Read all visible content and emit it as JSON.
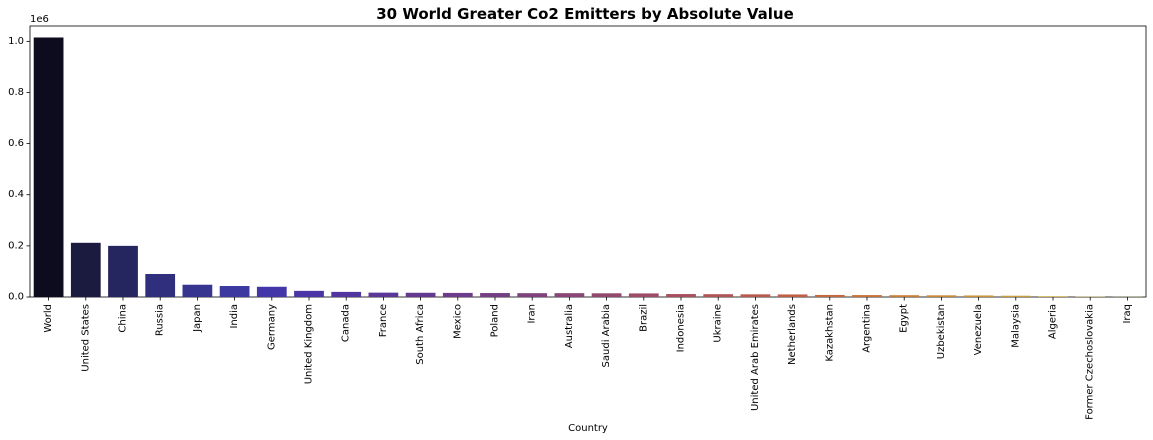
{
  "chart_data": {
    "type": "bar",
    "title": "30 World Greater Co2 Emitters by Absolute Value",
    "xlabel": "Country",
    "ylabel": "",
    "y_offset_label": "1e6",
    "ylim": [
      0,
      1060000
    ],
    "yticks": [
      0,
      200000,
      400000,
      600000,
      800000,
      1000000
    ],
    "ytick_labels": [
      "0.0",
      "0.2",
      "0.4",
      "0.6",
      "0.8",
      "1.0"
    ],
    "grid": false,
    "categories": [
      "World",
      "United States",
      "China",
      "Russia",
      "Japan",
      "India",
      "Germany",
      "United Kingdom",
      "Canada",
      "France",
      "South Africa",
      "Mexico",
      "Poland",
      "Iran",
      "Australia",
      "Saudi Arabia",
      "Brazil",
      "Indonesia",
      "Ukraine",
      "United Arab Emirates",
      "Netherlands",
      "Kazakhstan",
      "Argentina",
      "Egypt",
      "Uzbekistan",
      "Venezuela",
      "Malaysia",
      "Algeria",
      "Former Czechoslovakia",
      "Iraq"
    ],
    "values": [
      1015000,
      212000,
      200000,
      90000,
      48000,
      43000,
      40000,
      24000,
      20000,
      17000,
      16500,
      16000,
      15500,
      15000,
      15000,
      14500,
      14000,
      11500,
      11000,
      10500,
      10000,
      8000,
      7500,
      7000,
      6500,
      6000,
      5000,
      3000,
      1500,
      800
    ],
    "colors": [
      "#0d0b1e",
      "#1b1b40",
      "#252560",
      "#2f2f7d",
      "#363691",
      "#3c3aa0",
      "#4236a8",
      "#4a34a6",
      "#53359f",
      "#5b3798",
      "#643a91",
      "#6c3c8a",
      "#753f84",
      "#7f427d",
      "#894576",
      "#93486e",
      "#9d4b66",
      "#a74f5d",
      "#b05455",
      "#b85a4d",
      "#bf6045",
      "#c4683e",
      "#c77238",
      "#c87d35",
      "#c98834",
      "#c99336",
      "#c99e3b",
      "#c8a943",
      "#c6b24f",
      "#c3bb5c"
    ]
  }
}
